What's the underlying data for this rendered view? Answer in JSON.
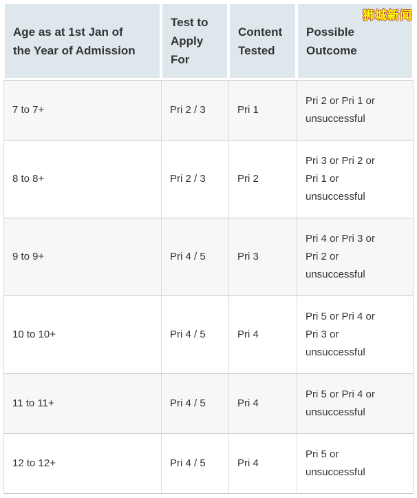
{
  "watermark": {
    "text": "狮城新闻"
  },
  "colors": {
    "header_bg": "#dee7ec",
    "row_bg": "#ffffff",
    "row_alt_bg": "#f7f7f7",
    "border_h": "#c9c9c9",
    "border_v": "#dadada",
    "text": "#333333",
    "watermark": "#ffff00",
    "watermark_outline": "#b53c3c"
  },
  "table": {
    "columns": [
      {
        "label": "Age as at 1st Jan of\nthe Year of Admission"
      },
      {
        "label": "Test to\nApply\nFor"
      },
      {
        "label": "Content\nTested"
      },
      {
        "label": "Possible\nOutcome"
      }
    ],
    "rows": [
      {
        "age": "7 to 7+",
        "test": "Pri 2 / 3",
        "content": "Pri 1",
        "outcome": "Pri 2 or Pri 1 or\nunsuccessful"
      },
      {
        "age": "8 to 8+",
        "test": "Pri 2 / 3",
        "content": "Pri 2",
        "outcome": "Pri 3 or Pri 2 or\nPri 1 or\nunsuccessful"
      },
      {
        "age": "9 to 9+",
        "test": "Pri 4 / 5",
        "content": "Pri 3",
        "outcome": "Pri 4 or Pri 3 or\nPri 2 or\nunsuccessful"
      },
      {
        "age": "10 to 10+",
        "test": "Pri 4 / 5",
        "content": "Pri 4",
        "outcome": "Pri 5 or Pri 4 or\nPri 3 or\nunsuccessful"
      },
      {
        "age": "11 to 11+",
        "test": "Pri 4 / 5",
        "content": "Pri 4",
        "outcome": "Pri 5 or Pri 4 or\nunsuccessful"
      },
      {
        "age": "12 to 12+",
        "test": "Pri 4 / 5",
        "content": "Pri 4",
        "outcome": "Pri 5 or\nunsuccessful"
      }
    ]
  }
}
